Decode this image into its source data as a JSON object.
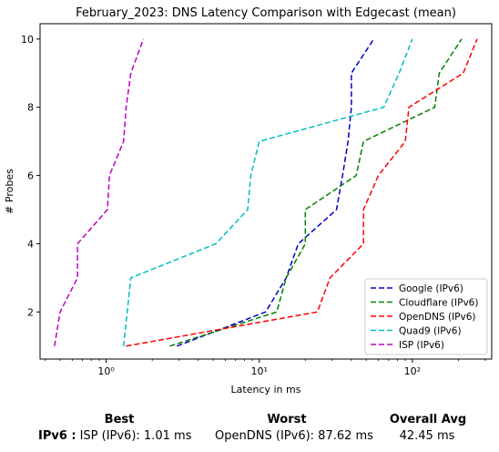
{
  "chart_data": {
    "type": "line",
    "title": "February_2023: DNS Latency Comparison with Edgecast (mean)",
    "xlabel": "Latency in ms",
    "ylabel": "# Probes",
    "xscale": "log",
    "xlim": [
      0.37,
      330
    ],
    "ylim": [
      0.62,
      10.45
    ],
    "xticks": [
      1,
      10,
      100
    ],
    "xtick_labels": [
      "10⁰",
      "10¹",
      "10²"
    ],
    "yticks": [
      2,
      4,
      6,
      8,
      10
    ],
    "grid": false,
    "legend_position": "lower-right",
    "line_style": "dashed",
    "series": [
      {
        "name": "Google (IPv6)",
        "color": "#0000cc",
        "points": [
          [
            2.9,
            1
          ],
          [
            11,
            2
          ],
          [
            15,
            3
          ],
          [
            18,
            4
          ],
          [
            32,
            5
          ],
          [
            35,
            6
          ],
          [
            38,
            7
          ],
          [
            40,
            8
          ],
          [
            40,
            9
          ],
          [
            56,
            10
          ]
        ]
      },
      {
        "name": "Cloudflare (IPv6)",
        "color": "#008000",
        "points": [
          [
            2.6,
            1
          ],
          [
            13,
            2
          ],
          [
            15,
            3
          ],
          [
            20,
            4
          ],
          [
            20,
            5
          ],
          [
            43,
            6
          ],
          [
            48,
            7
          ],
          [
            140,
            8
          ],
          [
            150,
            9
          ],
          [
            210,
            10
          ]
        ]
      },
      {
        "name": "OpenDNS (IPv6)",
        "color": "#ff0000",
        "points": [
          [
            1.35,
            1
          ],
          [
            24,
            2
          ],
          [
            29,
            3
          ],
          [
            48,
            4
          ],
          [
            48,
            5
          ],
          [
            60,
            6
          ],
          [
            90,
            7
          ],
          [
            95,
            8
          ],
          [
            215,
            9
          ],
          [
            265,
            10
          ]
        ]
      },
      {
        "name": "Quad9 (IPv6)",
        "color": "#00bfbf",
        "points": [
          [
            1.3,
            1
          ],
          [
            1.45,
            3
          ],
          [
            5.2,
            4
          ],
          [
            8.4,
            5
          ],
          [
            8.8,
            6
          ],
          [
            10,
            7
          ],
          [
            65,
            8
          ],
          [
            82,
            9
          ],
          [
            100,
            10
          ]
        ]
      },
      {
        "name": "ISP (IPv6)",
        "color": "#bf00bf",
        "points": [
          [
            0.46,
            1
          ],
          [
            0.5,
            2
          ],
          [
            0.65,
            3
          ],
          [
            0.65,
            4
          ],
          [
            1.02,
            5
          ],
          [
            1.05,
            6
          ],
          [
            1.3,
            7
          ],
          [
            1.35,
            8
          ],
          [
            1.45,
            9
          ],
          [
            1.75,
            10
          ]
        ]
      }
    ]
  },
  "summary": {
    "headers": {
      "best": "Best",
      "worst": "Worst",
      "avg": "Overall Avg"
    },
    "row_label": "IPv6 :",
    "best": "ISP (IPv6): 1.01 ms",
    "worst": "OpenDNS (IPv6): 87.62 ms",
    "avg": "42.45 ms"
  }
}
